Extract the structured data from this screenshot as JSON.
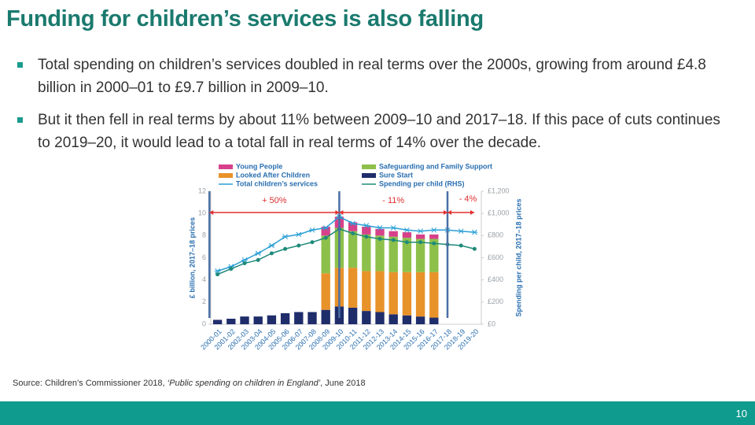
{
  "header": {
    "title": "Funding for children’s services is also falling"
  },
  "bullets": [
    "Total spending on children’s services doubled in real terms over the 2000s, growing from around £4.8 billion in 2000–01 to £9.7 billion in 2009–10.",
    "But it then fell in real terms by about 11% between 2009–10 and 2017–18. If this pace of cuts continues to 2019–20, it would lead to a total fall in real terms of 14% over the decade."
  ],
  "chart_data": {
    "type": "bar",
    "y_label": "£ billion, 2017–18 prices",
    "y2_label": "Spending per child, 2017–18 prices",
    "annotations": [
      "+ 50%",
      "- 11%",
      "- 4%"
    ],
    "categories": [
      "2000-01",
      "2001-02",
      "2002-03",
      "2003-04",
      "2004-05",
      "2005-06",
      "2006-07",
      "2007-08",
      "2008-09",
      "2009-10",
      "2010-11",
      "2011-12",
      "2012-13",
      "2013-14",
      "2014-15",
      "2015-16",
      "2016-17",
      "2017-18",
      "2018-19",
      "2019-20"
    ],
    "ylim": [
      0,
      12
    ],
    "yticks": [
      0,
      2,
      4,
      6,
      8,
      10,
      12
    ],
    "y2lim": [
      0,
      1200
    ],
    "y2ticks": [
      {
        "value": 0,
        "label": "£0"
      },
      {
        "value": 200,
        "label": "£200"
      },
      {
        "value": 400,
        "label": "£400"
      },
      {
        "value": 600,
        "label": "£600"
      },
      {
        "value": 800,
        "label": "£800"
      },
      {
        "value": 1000,
        "label": "£1,000"
      },
      {
        "value": 1200,
        "label": "£1,200"
      }
    ],
    "series": [
      {
        "name": "Sure Start",
        "color": "#1f2d6b",
        "kind": "bar",
        "values": [
          0.4,
          0.5,
          0.7,
          0.7,
          0.8,
          1.0,
          1.1,
          1.1,
          1.3,
          1.6,
          1.5,
          1.2,
          1.1,
          0.9,
          0.8,
          0.7,
          0.6,
          null,
          null,
          null
        ]
      },
      {
        "name": "Looked After Children",
        "color": "#e8922a",
        "kind": "bar",
        "values": [
          null,
          null,
          null,
          null,
          null,
          null,
          null,
          null,
          3.3,
          3.5,
          3.6,
          3.6,
          3.7,
          3.8,
          3.9,
          4.0,
          4.1,
          null,
          null,
          null
        ]
      },
      {
        "name": "Safeguarding and Family Support",
        "color": "#8dc04a",
        "kind": "bar",
        "values": [
          null,
          null,
          null,
          null,
          null,
          null,
          null,
          null,
          3.4,
          3.6,
          3.3,
          3.3,
          3.2,
          3.2,
          3.1,
          3.0,
          3.0,
          null,
          null,
          null
        ]
      },
      {
        "name": "Young People",
        "color": "#d6418a",
        "kind": "bar",
        "values": [
          null,
          null,
          null,
          null,
          null,
          null,
          null,
          null,
          0.8,
          1.0,
          0.8,
          0.7,
          0.6,
          0.5,
          0.5,
          0.4,
          0.4,
          null,
          null,
          null
        ]
      },
      {
        "name": "Total children’s services",
        "color": "#2a9fd6",
        "kind": "line",
        "marker": "cross",
        "values": [
          4.8,
          5.2,
          5.8,
          6.4,
          7.1,
          7.9,
          8.1,
          8.5,
          8.7,
          9.7,
          9.1,
          8.9,
          8.7,
          8.7,
          8.5,
          8.4,
          8.5,
          8.5,
          8.4,
          8.3
        ]
      },
      {
        "name": "Spending per child (RHS)",
        "color": "#1e8a7a",
        "kind": "line",
        "marker": "dot",
        "axis": "y2",
        "values": [
          450,
          500,
          550,
          580,
          640,
          680,
          710,
          740,
          780,
          860,
          820,
          790,
          770,
          760,
          740,
          740,
          730,
          720,
          710,
          680
        ]
      }
    ]
  },
  "source": {
    "text": "Source: Children’s Commissioner 2018, ",
    "title": "‘Public spending on children in England’",
    "date": ", June 2018"
  },
  "footer": {
    "page": "10"
  }
}
